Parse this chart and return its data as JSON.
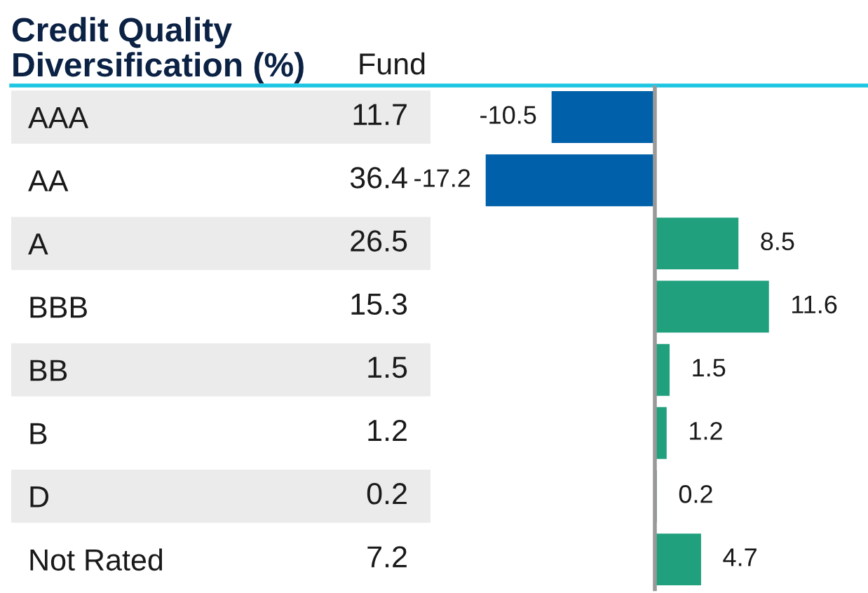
{
  "chart_data": {
    "type": "bar",
    "orientation": "horizontal",
    "title": "Credit Quality\nDiversification (%)",
    "categories": [
      "AAA",
      "AA",
      "A",
      "BBB",
      "BB",
      "B",
      "D",
      "Not Rated"
    ],
    "values": [
      -10.5,
      -17.2,
      8.5,
      11.6,
      1.5,
      1.2,
      0.2,
      4.7
    ],
    "colors": [
      "#0060a9",
      "#0060a9",
      "#21a07e",
      "#21a07e",
      "#21a07e",
      "#21a07e",
      "#21a07e",
      "#21a07e"
    ],
    "data_labels": true,
    "tick_labels": "y",
    "annotations": [
      "Fund",
      "11.7",
      "36.4",
      "26.5",
      "15.3",
      "1.5",
      "1.2",
      "0.2",
      "7.2"
    ]
  }
}
